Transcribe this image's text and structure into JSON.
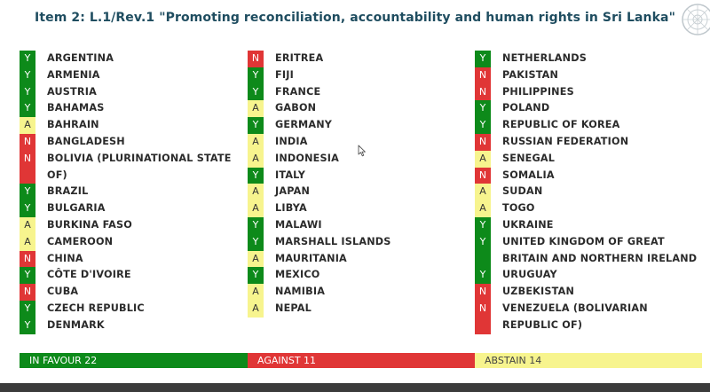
{
  "title": "Item 2: L.1/Rev.1 \"Promoting reconciliation, accountability and human rights in Sri Lanka\"",
  "colors": {
    "yes": "#0d8a1a",
    "no": "#e03636",
    "abstain": "#f7f48e",
    "title": "#1f4d60"
  },
  "columns": [
    [
      {
        "vote": "Y",
        "country": "ARGENTINA"
      },
      {
        "vote": "Y",
        "country": "ARMENIA"
      },
      {
        "vote": "Y",
        "country": "AUSTRIA"
      },
      {
        "vote": "Y",
        "country": "BAHAMAS"
      },
      {
        "vote": "A",
        "country": "BAHRAIN"
      },
      {
        "vote": "N",
        "country": "BANGLADESH"
      },
      {
        "vote": "N",
        "country": "BOLIVIA (PLURINATIONAL STATE OF)"
      },
      {
        "vote": "Y",
        "country": "BRAZIL"
      },
      {
        "vote": "Y",
        "country": "BULGARIA"
      },
      {
        "vote": "A",
        "country": "BURKINA FASO"
      },
      {
        "vote": "A",
        "country": "CAMEROON"
      },
      {
        "vote": "N",
        "country": "CHINA"
      },
      {
        "vote": "Y",
        "country": "CÔTE D'IVOIRE"
      },
      {
        "vote": "N",
        "country": "CUBA"
      },
      {
        "vote": "Y",
        "country": "CZECH REPUBLIC"
      },
      {
        "vote": "Y",
        "country": "DENMARK"
      }
    ],
    [
      {
        "vote": "N",
        "country": "ERITREA"
      },
      {
        "vote": "Y",
        "country": "FIJI"
      },
      {
        "vote": "Y",
        "country": "FRANCE"
      },
      {
        "vote": "A",
        "country": "GABON"
      },
      {
        "vote": "Y",
        "country": "GERMANY"
      },
      {
        "vote": "A",
        "country": "INDIA"
      },
      {
        "vote": "A",
        "country": "INDONESIA"
      },
      {
        "vote": "Y",
        "country": "ITALY"
      },
      {
        "vote": "A",
        "country": "JAPAN"
      },
      {
        "vote": "A",
        "country": "LIBYA"
      },
      {
        "vote": "Y",
        "country": "MALAWI"
      },
      {
        "vote": "Y",
        "country": "MARSHALL ISLANDS"
      },
      {
        "vote": "A",
        "country": "MAURITANIA"
      },
      {
        "vote": "Y",
        "country": "MEXICO"
      },
      {
        "vote": "A",
        "country": "NAMIBIA"
      },
      {
        "vote": "A",
        "country": "NEPAL"
      }
    ],
    [
      {
        "vote": "Y",
        "country": "NETHERLANDS"
      },
      {
        "vote": "N",
        "country": "PAKISTAN"
      },
      {
        "vote": "N",
        "country": "PHILIPPINES"
      },
      {
        "vote": "Y",
        "country": "POLAND"
      },
      {
        "vote": "Y",
        "country": "REPUBLIC OF KOREA"
      },
      {
        "vote": "N",
        "country": "RUSSIAN FEDERATION"
      },
      {
        "vote": "A",
        "country": "SENEGAL"
      },
      {
        "vote": "N",
        "country": "SOMALIA"
      },
      {
        "vote": "A",
        "country": "SUDAN"
      },
      {
        "vote": "A",
        "country": "TOGO"
      },
      {
        "vote": "Y",
        "country": "UKRAINE"
      },
      {
        "vote": "Y",
        "country": "UNITED KINGDOM OF GREAT BRITAIN AND NORTHERN IRELAND"
      },
      {
        "vote": "Y",
        "country": "URUGUAY"
      },
      {
        "vote": "N",
        "country": "UZBEKISTAN"
      },
      {
        "vote": "N",
        "country": "VENEZUELA (BOLIVARIAN REPUBLIC OF)"
      }
    ]
  ],
  "totals": {
    "favour": "IN FAVOUR 22",
    "against": "AGAINST 11",
    "abstain": "ABSTAIN 14"
  },
  "icons": {
    "logo": "un-emblem-icon",
    "cursor": "mouse-pointer-icon"
  }
}
